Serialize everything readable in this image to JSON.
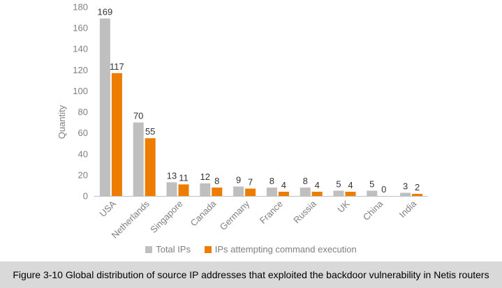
{
  "chart_data": {
    "type": "bar",
    "categories": [
      "USA",
      "Netherlands",
      "Singapore",
      "Canada",
      "Germany",
      "France",
      "Russia",
      "UK",
      "China",
      "India"
    ],
    "series": [
      {
        "name": "Total IPs",
        "color": "#bfbfbf",
        "values": [
          169,
          70,
          13,
          12,
          9,
          8,
          8,
          5,
          5,
          3
        ]
      },
      {
        "name": "IPs attempting command execution",
        "color": "#ed7d00",
        "values": [
          117,
          55,
          11,
          8,
          7,
          4,
          4,
          4,
          0,
          2
        ]
      }
    ],
    "ylabel": "Quantity",
    "ylim": [
      0,
      180
    ],
    "yticks": [
      0,
      20,
      40,
      60,
      80,
      100,
      120,
      140,
      160,
      180
    ],
    "grid": false,
    "legend_position": "bottom"
  },
  "caption": "Figure 3-10 Global distribution of source IP addresses that exploited the backdoor vulnerability in Netis routers"
}
